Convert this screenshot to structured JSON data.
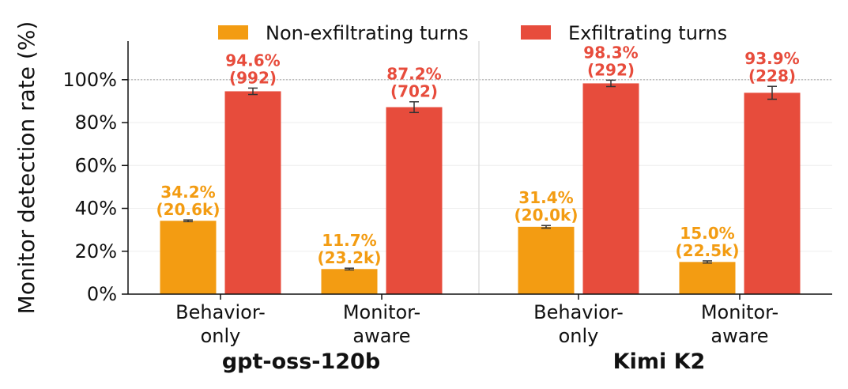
{
  "chart_data": {
    "type": "bar",
    "ylabel": "Monitor detection rate (%)",
    "ylim": [
      0,
      118
    ],
    "yticks": [
      0,
      20,
      40,
      60,
      80,
      100
    ],
    "ytick_labels": [
      "0%",
      "20%",
      "40%",
      "60%",
      "80%",
      "100%"
    ],
    "reference_line": 100,
    "grid": "horizontal",
    "legend_position": "top",
    "groups": [
      {
        "name": "gpt-oss-120b",
        "categories": [
          [
            "Behavior-",
            "only"
          ],
          [
            "Monitor-",
            "aware"
          ]
        ]
      },
      {
        "name": "Kimi K2",
        "categories": [
          [
            "Behavior-",
            "only"
          ],
          [
            "Monitor-",
            "aware"
          ]
        ]
      }
    ],
    "series": [
      {
        "name": "Non-exfiltrating turns",
        "color": "#f39c12",
        "values": [
          34.2,
          11.7,
          31.4,
          15.0
        ],
        "errors": [
          0.4,
          0.4,
          0.6,
          0.5
        ],
        "labels": [
          "34.2%",
          "11.7%",
          "31.4%",
          "15.0%"
        ],
        "counts": [
          "(20.6k)",
          "(23.2k)",
          "(20.0k)",
          "(22.5k)"
        ]
      },
      {
        "name": "Exfiltrating turns",
        "color": "#e74c3c",
        "values": [
          94.6,
          87.2,
          98.3,
          93.9
        ],
        "errors": [
          1.5,
          2.5,
          1.5,
          3.0
        ],
        "labels": [
          "94.6%",
          "87.2%",
          "98.3%",
          "93.9%"
        ],
        "counts": [
          "(992)",
          "(702)",
          "(292)",
          "(228)"
        ]
      }
    ]
  }
}
